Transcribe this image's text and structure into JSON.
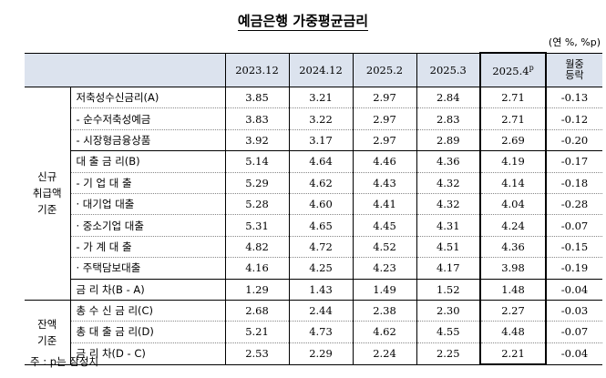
{
  "title": "예금은행 가중평균금리",
  "unit": "(연 %, %p)",
  "columns": [
    "2023.12",
    "2024.12",
    "2025.2",
    "2025.3",
    "2025.4",
    "월중",
    "등락"
  ],
  "col_sup": "p",
  "groups": {
    "new": [
      "신규",
      "취급액",
      "기준"
    ],
    "bal": [
      "잔액",
      "기준"
    ]
  },
  "rows": [
    {
      "label": "저축성수신금리(A)",
      "v": [
        "3.85",
        "3.21",
        "2.97",
        "2.84",
        "2.71",
        "-0.13"
      ]
    },
    {
      "label": "- 순수저축성예금",
      "v": [
        "3.83",
        "3.22",
        "2.97",
        "2.83",
        "2.71",
        "-0.12"
      ]
    },
    {
      "label": "- 시장형금융상품",
      "v": [
        "3.92",
        "3.17",
        "2.97",
        "2.89",
        "2.69",
        "-0.20"
      ]
    },
    {
      "label": "대 출 금 리(B)",
      "v": [
        "5.14",
        "4.64",
        "4.46",
        "4.36",
        "4.19",
        "-0.17"
      ]
    },
    {
      "label": "- 기 업 대 출",
      "v": [
        "5.29",
        "4.62",
        "4.43",
        "4.32",
        "4.14",
        "-0.18"
      ]
    },
    {
      "label": "· 대기업 대출",
      "v": [
        "5.28",
        "4.60",
        "4.41",
        "4.32",
        "4.04",
        "-0.28"
      ]
    },
    {
      "label": "· 중소기업 대출",
      "v": [
        "5.31",
        "4.65",
        "4.45",
        "4.31",
        "4.24",
        "-0.07"
      ]
    },
    {
      "label": "- 가 계 대 출",
      "v": [
        "4.82",
        "4.72",
        "4.52",
        "4.51",
        "4.36",
        "-0.15"
      ]
    },
    {
      "label": "· 주택담보대출",
      "v": [
        "4.16",
        "4.25",
        "4.23",
        "4.17",
        "3.98",
        "-0.19"
      ]
    },
    {
      "label": "금 리 차(B - A)",
      "v": [
        "1.29",
        "1.43",
        "1.49",
        "1.52",
        "1.48",
        "-0.04"
      ]
    },
    {
      "label": "총 수 신 금 리(C)",
      "v": [
        "2.68",
        "2.44",
        "2.38",
        "2.30",
        "2.27",
        "-0.03"
      ]
    },
    {
      "label": "총 대 출 금 리(D)",
      "v": [
        "5.21",
        "4.73",
        "4.62",
        "4.55",
        "4.48",
        "-0.07"
      ]
    },
    {
      "label": "금 리 차(D - C)",
      "v": [
        "2.53",
        "2.29",
        "2.24",
        "2.25",
        "2.21",
        "-0.04"
      ]
    }
  ],
  "footnote": "주 : p는 잠정치"
}
